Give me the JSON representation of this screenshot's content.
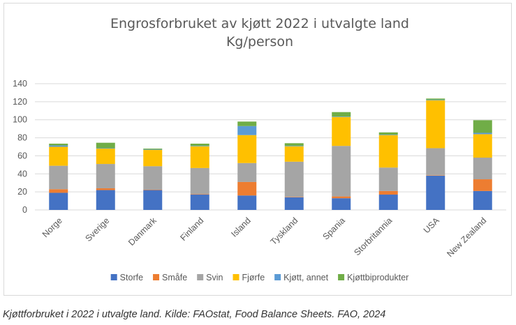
{
  "chart_data": {
    "type": "bar",
    "stacked": true,
    "title": "Engrosforbruket av kjøtt 2022 i utvalgte land",
    "subtitle": "Kg/person",
    "xlabel": "",
    "ylabel": "",
    "ylim": [
      0,
      140
    ],
    "yticks": [
      "0",
      "20",
      "40",
      "60",
      "80",
      "100",
      "120",
      "140"
    ],
    "grid": true,
    "legend_position": "bottom",
    "categories": [
      "Norge",
      "Sverige",
      "Danmark",
      "Finland",
      "Island",
      "Tyskland",
      "Spania",
      "Storbritannia",
      "USA",
      "New Zealand"
    ],
    "series": [
      {
        "name": "Storfe",
        "color": "#4472c4",
        "values": [
          19,
          22,
          22,
          17,
          16,
          14,
          13,
          17,
          38,
          21
        ]
      },
      {
        "name": "Småfe",
        "color": "#ed7d31",
        "values": [
          4,
          2,
          0.5,
          0.5,
          15,
          0.5,
          2,
          4,
          0.5,
          13
        ]
      },
      {
        "name": "Svin",
        "color": "#a5a5a5",
        "values": [
          26,
          27,
          26,
          29,
          21,
          39,
          56,
          26,
          30,
          24
        ]
      },
      {
        "name": "Fjørfe",
        "color": "#ffc000",
        "values": [
          21,
          17,
          18,
          24,
          31,
          17,
          32,
          36,
          53,
          26
        ]
      },
      {
        "name": "Kjøtt, annet",
        "color": "#5b9bd5",
        "values": [
          1.5,
          0.5,
          0.5,
          0.5,
          10,
          0.5,
          0.5,
          0.5,
          0.5,
          1.5
        ]
      },
      {
        "name": "Kjøttbiprodukter",
        "color": "#70ad47",
        "values": [
          2,
          6,
          1,
          2.5,
          5,
          3,
          5,
          2.5,
          1.5,
          14
        ]
      }
    ]
  },
  "caption": "Kjøttforbruket i 2022 i utvalgte land. Kilde: FAOstat, Food Balance Sheets. FAO, 2024"
}
